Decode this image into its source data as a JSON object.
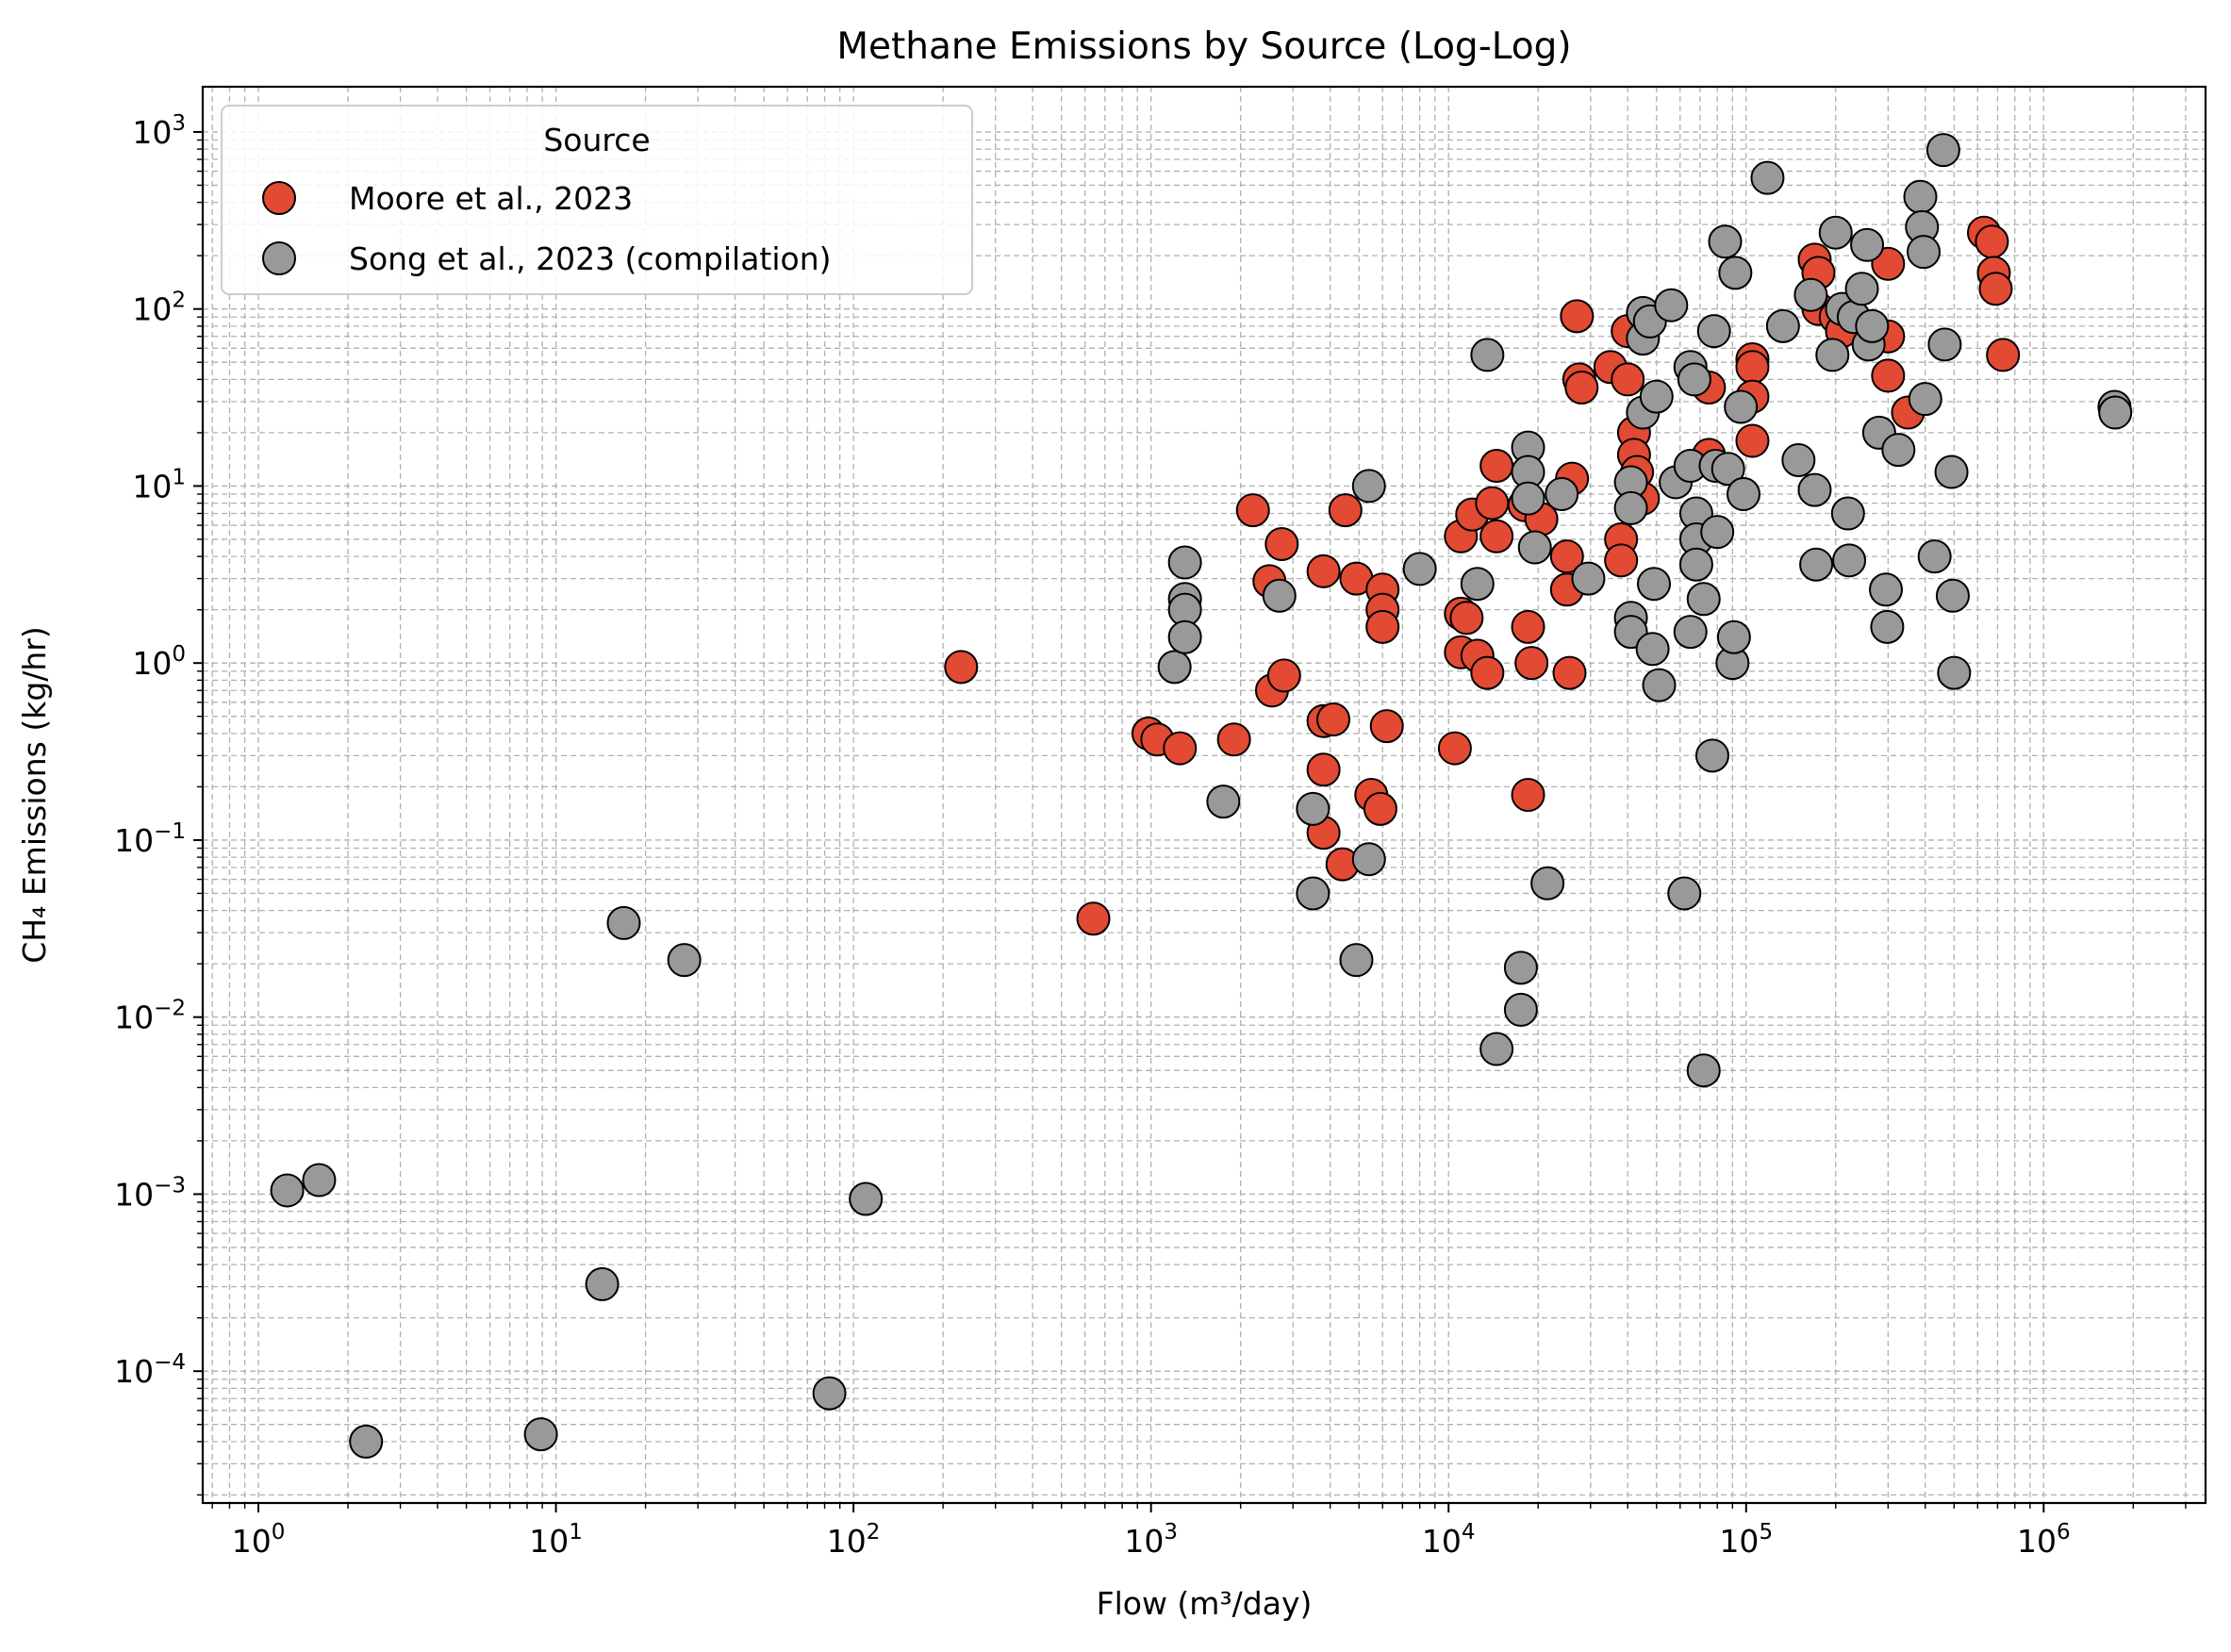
{
  "chart_data": {
    "type": "scatter",
    "title": "Methane Emissions by Source (Log-Log)",
    "xlabel": "Flow (m³/day)",
    "ylabel": "CH₄ Emissions (kg/hr)",
    "x_scale": "log",
    "y_scale": "log",
    "xlim": [
      0.65,
      3500000
    ],
    "ylim": [
      1.8e-05,
      1800
    ],
    "x_tick_exponents": [
      0,
      1,
      2,
      3,
      4,
      5,
      6
    ],
    "y_tick_exponents": [
      -4,
      -3,
      -2,
      -1,
      0,
      1,
      2,
      3
    ],
    "grid": true,
    "legend": {
      "title": "Source",
      "position": "top-left"
    },
    "series": [
      {
        "name": "Moore et al., 2023",
        "color": "#e24a33",
        "points": [
          [
            230,
            0.95
          ],
          [
            640,
            0.036
          ],
          [
            980,
            0.4
          ],
          [
            1050,
            0.37
          ],
          [
            1250,
            0.33
          ],
          [
            1900,
            0.37
          ],
          [
            2200,
            7.3
          ],
          [
            2500,
            2.9
          ],
          [
            2550,
            0.7
          ],
          [
            2750,
            4.7
          ],
          [
            2800,
            0.85
          ],
          [
            3800,
            3.3
          ],
          [
            3800,
            0.47
          ],
          [
            3800,
            0.25
          ],
          [
            3800,
            0.11
          ],
          [
            4100,
            0.48
          ],
          [
            4400,
            0.073
          ],
          [
            4500,
            7.3
          ],
          [
            4900,
            3.0
          ],
          [
            5500,
            0.18
          ],
          [
            5900,
            0.15
          ],
          [
            6000,
            2.6
          ],
          [
            6000,
            2.0
          ],
          [
            6000,
            1.6
          ],
          [
            6200,
            0.44
          ],
          [
            10500,
            0.33
          ],
          [
            11000,
            5.2
          ],
          [
            11000,
            1.9
          ],
          [
            11000,
            1.15
          ],
          [
            11500,
            1.8
          ],
          [
            12000,
            6.9
          ],
          [
            12500,
            1.1
          ],
          [
            13500,
            0.88
          ],
          [
            14000,
            8.0
          ],
          [
            14500,
            13
          ],
          [
            14500,
            5.2
          ],
          [
            18000,
            7.8
          ],
          [
            18500,
            1.6
          ],
          [
            18500,
            0.18
          ],
          [
            19000,
            1.0
          ],
          [
            20500,
            6.5
          ],
          [
            25000,
            2.6
          ],
          [
            25000,
            4.0
          ],
          [
            25500,
            0.88
          ],
          [
            26000,
            11
          ],
          [
            27000,
            91
          ],
          [
            27500,
            40
          ],
          [
            28000,
            36
          ],
          [
            35000,
            47
          ],
          [
            38000,
            5.0
          ],
          [
            38000,
            3.8
          ],
          [
            40000,
            75
          ],
          [
            40000,
            40
          ],
          [
            42000,
            20
          ],
          [
            42000,
            15
          ],
          [
            43000,
            12
          ],
          [
            45000,
            8.5
          ],
          [
            75000,
            36
          ],
          [
            75000,
            15
          ],
          [
            105000,
            52
          ],
          [
            105000,
            47
          ],
          [
            105000,
            32
          ],
          [
            105000,
            18
          ],
          [
            170000,
            190
          ],
          [
            175000,
            160
          ],
          [
            175000,
            100
          ],
          [
            200000,
            90
          ],
          [
            210000,
            75
          ],
          [
            300000,
            180
          ],
          [
            300000,
            70
          ],
          [
            300000,
            42
          ],
          [
            350000,
            26
          ],
          [
            630000,
            270
          ],
          [
            670000,
            240
          ],
          [
            680000,
            160
          ],
          [
            690000,
            130
          ],
          [
            730000,
            55
          ]
        ]
      },
      {
        "name": "Song et al., 2023 (compilation)",
        "color": "#999999",
        "points": [
          [
            1.25,
            0.00105
          ],
          [
            1.6,
            0.0012
          ],
          [
            2.3,
            4e-05
          ],
          [
            8.9,
            4.4e-05
          ],
          [
            14.3,
            0.00031
          ],
          [
            16.9,
            0.034
          ],
          [
            27,
            0.021
          ],
          [
            83,
            7.5e-05
          ],
          [
            110,
            0.00094
          ],
          [
            1200,
            0.95
          ],
          [
            1300,
            3.7
          ],
          [
            1300,
            2.3
          ],
          [
            1300,
            2.0
          ],
          [
            1300,
            1.4
          ],
          [
            1750,
            0.165
          ],
          [
            2700,
            2.4
          ],
          [
            3500,
            0.15
          ],
          [
            3500,
            0.05
          ],
          [
            4900,
            0.021
          ],
          [
            5400,
            10
          ],
          [
            5400,
            0.078
          ],
          [
            8000,
            3.4
          ],
          [
            12500,
            2.8
          ],
          [
            13500,
            55
          ],
          [
            14500,
            0.0066
          ],
          [
            17500,
            0.019
          ],
          [
            17500,
            0.011
          ],
          [
            18500,
            16.5
          ],
          [
            18500,
            12
          ],
          [
            18500,
            8.5
          ],
          [
            19500,
            4.5
          ],
          [
            21500,
            0.057
          ],
          [
            24000,
            9.0
          ],
          [
            29500,
            3.0
          ],
          [
            41000,
            10.5
          ],
          [
            41000,
            7.5
          ],
          [
            41000,
            1.8
          ],
          [
            41000,
            1.5
          ],
          [
            45000,
            95
          ],
          [
            45000,
            68
          ],
          [
            45000,
            26
          ],
          [
            47500,
            85
          ],
          [
            48500,
            1.2
          ],
          [
            49000,
            2.8
          ],
          [
            50000,
            32
          ],
          [
            51000,
            0.75
          ],
          [
            56000,
            105
          ],
          [
            58000,
            10.5
          ],
          [
            62000,
            0.05
          ],
          [
            65000,
            47
          ],
          [
            65000,
            13
          ],
          [
            65000,
            1.5
          ],
          [
            67000,
            40
          ],
          [
            68000,
            7.0
          ],
          [
            68000,
            5.0
          ],
          [
            68000,
            3.6
          ],
          [
            72000,
            2.3
          ],
          [
            72000,
            0.005
          ],
          [
            77000,
            0.3
          ],
          [
            78000,
            75
          ],
          [
            79000,
            13
          ],
          [
            80000,
            5.5
          ],
          [
            85000,
            240
          ],
          [
            87000,
            12.5
          ],
          [
            90000,
            1.0
          ],
          [
            91000,
            1.4
          ],
          [
            92000,
            160
          ],
          [
            96000,
            28
          ],
          [
            98000,
            9.0
          ],
          [
            118000,
            550
          ],
          [
            133000,
            80
          ],
          [
            150000,
            14
          ],
          [
            165000,
            120
          ],
          [
            170000,
            9.5
          ],
          [
            172000,
            3.6
          ],
          [
            195000,
            55
          ],
          [
            200000,
            270
          ],
          [
            210000,
            100
          ],
          [
            220000,
            7.0
          ],
          [
            222000,
            3.8
          ],
          [
            230000,
            90
          ],
          [
            245000,
            130
          ],
          [
            255000,
            230
          ],
          [
            258000,
            63
          ],
          [
            265000,
            80
          ],
          [
            280000,
            20
          ],
          [
            295000,
            2.6
          ],
          [
            298000,
            1.6
          ],
          [
            325000,
            16
          ],
          [
            385000,
            430
          ],
          [
            390000,
            290
          ],
          [
            395000,
            210
          ],
          [
            400000,
            31
          ],
          [
            430000,
            4.0
          ],
          [
            460000,
            790
          ],
          [
            465000,
            63
          ],
          [
            490000,
            12
          ],
          [
            495000,
            2.4
          ],
          [
            500000,
            0.88
          ],
          [
            1730000,
            28
          ],
          [
            1740000,
            26
          ]
        ]
      }
    ]
  }
}
